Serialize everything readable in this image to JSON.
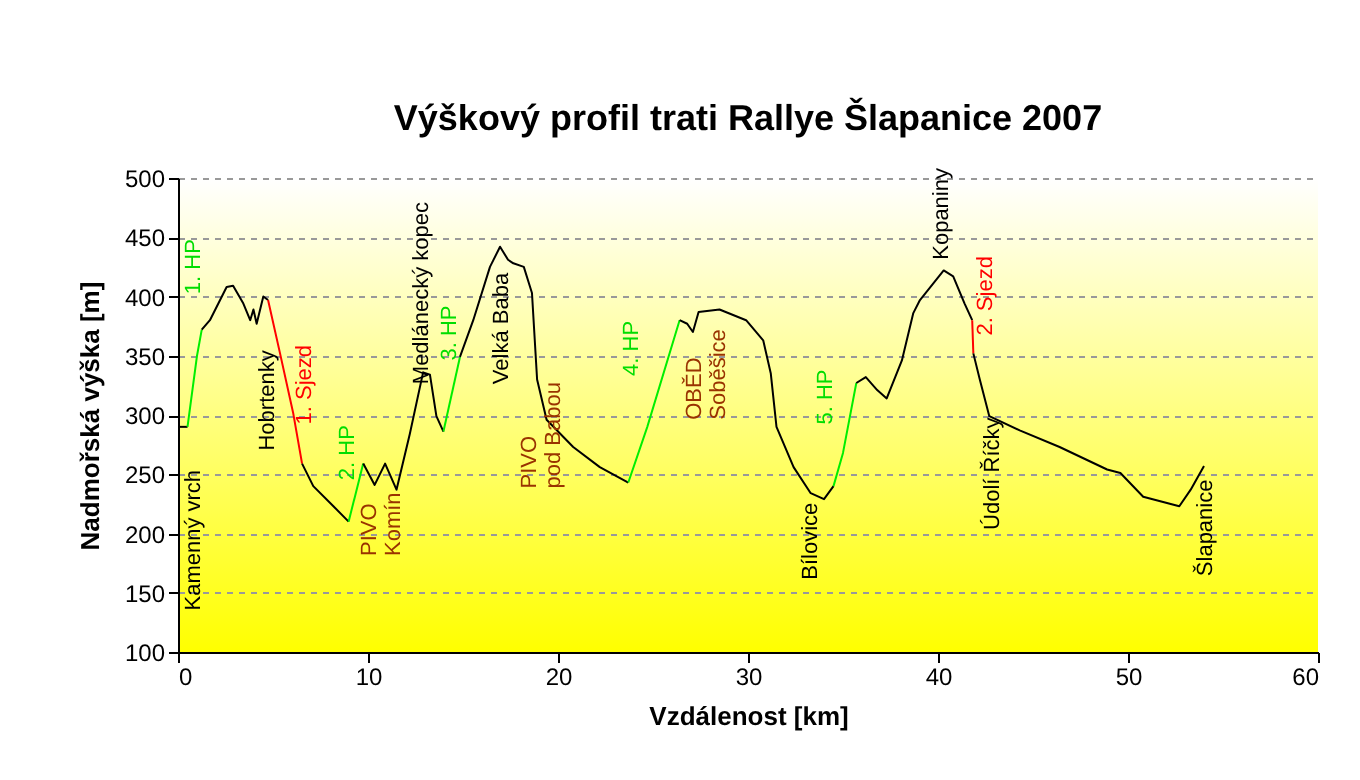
{
  "chart_data": {
    "type": "line",
    "title": "Výškový profil trati Rallye Šlapanice 2007",
    "xlabel": "Vzdálenost [km]",
    "ylabel": "Nadmořská výška [m]",
    "xlim": [
      0,
      60
    ],
    "xticks": [
      0,
      10,
      20,
      30,
      40,
      50,
      60
    ],
    "ylim": [
      100,
      500
    ],
    "yticks": [
      100,
      150,
      200,
      250,
      300,
      350,
      400,
      450,
      500
    ],
    "grid": "y",
    "legend": false,
    "series": [
      {
        "color": "#000000",
        "x": [
          0,
          0.5
        ],
        "values": [
          290,
          290
        ]
      },
      {
        "color": "#00ee00",
        "x": [
          0.5,
          1.0,
          1.25
        ],
        "values": [
          290,
          350,
          372
        ]
      },
      {
        "color": "#000000",
        "x": [
          1.25,
          1.68,
          2.56,
          2.9,
          3.44,
          3.8,
          3.97,
          4.14,
          4.49,
          4.74
        ],
        "values": [
          372,
          380,
          408,
          409,
          394,
          380,
          389,
          377,
          400,
          397
        ]
      },
      {
        "color": "#ff0000",
        "x": [
          4.74,
          5.37,
          6.07,
          6.53
        ],
        "values": [
          397,
          352,
          301,
          259
        ]
      },
      {
        "color": "#000000",
        "x": [
          6.53,
          7.12,
          8.18,
          8.98
        ],
        "values": [
          259,
          240,
          223,
          210
        ]
      },
      {
        "color": "#00ee00",
        "x": [
          8.98,
          9.75
        ],
        "values": [
          210,
          259
        ]
      },
      {
        "color": "#000000",
        "x": [
          9.75,
          10.35,
          10.9,
          11.5,
          12.2,
          12.9,
          13.26,
          13.6,
          13.97
        ],
        "values": [
          259,
          241,
          259,
          237,
          284,
          336,
          334,
          299,
          286
        ]
      },
      {
        "color": "#00ee00",
        "x": [
          13.97,
          14.84
        ],
        "values": [
          286,
          349
        ]
      },
      {
        "color": "#000000",
        "x": [
          14.84,
          15.54,
          16.42,
          16.95,
          17.37,
          17.65,
          18.2,
          18.63,
          18.9,
          19.4,
          20.8,
          22.2,
          23.7
        ],
        "values": [
          349,
          380,
          425,
          442,
          431,
          428,
          425,
          403,
          330,
          296,
          273,
          256,
          243
        ]
      },
      {
        "color": "#00ee00",
        "x": [
          23.7,
          24.7,
          26.4
        ],
        "values": [
          243,
          290,
          380
        ]
      },
      {
        "color": "#000000",
        "x": [
          26.4,
          26.8,
          27.1,
          27.4,
          28.5,
          29.9,
          30.8,
          31.2,
          31.5,
          32.4,
          33.3,
          34.0,
          34.5
        ],
        "values": [
          380,
          377,
          370,
          387,
          389,
          380,
          363,
          335,
          290,
          256,
          234,
          229,
          240
        ]
      },
      {
        "color": "#00ee00",
        "x": [
          34.5,
          35.0,
          35.7
        ],
        "values": [
          240,
          268,
          327
        ]
      },
      {
        "color": "#000000",
        "x": [
          35.7,
          36.2,
          36.8,
          37.3,
          38.1,
          38.7,
          39.05,
          40.3,
          40.8,
          41.4,
          41.8
        ],
        "values": [
          327,
          332,
          321,
          314,
          346,
          386,
          397,
          422,
          417,
          394,
          380
        ]
      },
      {
        "color": "#ff0000",
        "x": [
          41.8,
          41.86
        ],
        "values": [
          380,
          352
        ]
      },
      {
        "color": "#000000",
        "x": [
          41.86,
          42.2,
          42.7,
          44.3,
          46.4,
          48.9,
          49.6,
          50.8,
          51.5,
          52.7,
          53.3,
          54.0
        ],
        "values": [
          352,
          330,
          299,
          287,
          273,
          254,
          251,
          231,
          228,
          223,
          237,
          257
        ]
      }
    ],
    "annotations": [
      "1. HP",
      "Kamenný vrch",
      "Hobrtenky",
      "1. Sjezd",
      "2. HP",
      "PIVO\nKomín",
      "Medlánecký kopec",
      "3. HP",
      "Velká Baba",
      "PIVO\npod Babou",
      "4. HP",
      "OBĚD\nSoběšice",
      "Bílovice",
      "5. HP",
      "Kopaniny",
      "2. Sjezd",
      "Údolí Říčky",
      "Šlapanice"
    ]
  }
}
